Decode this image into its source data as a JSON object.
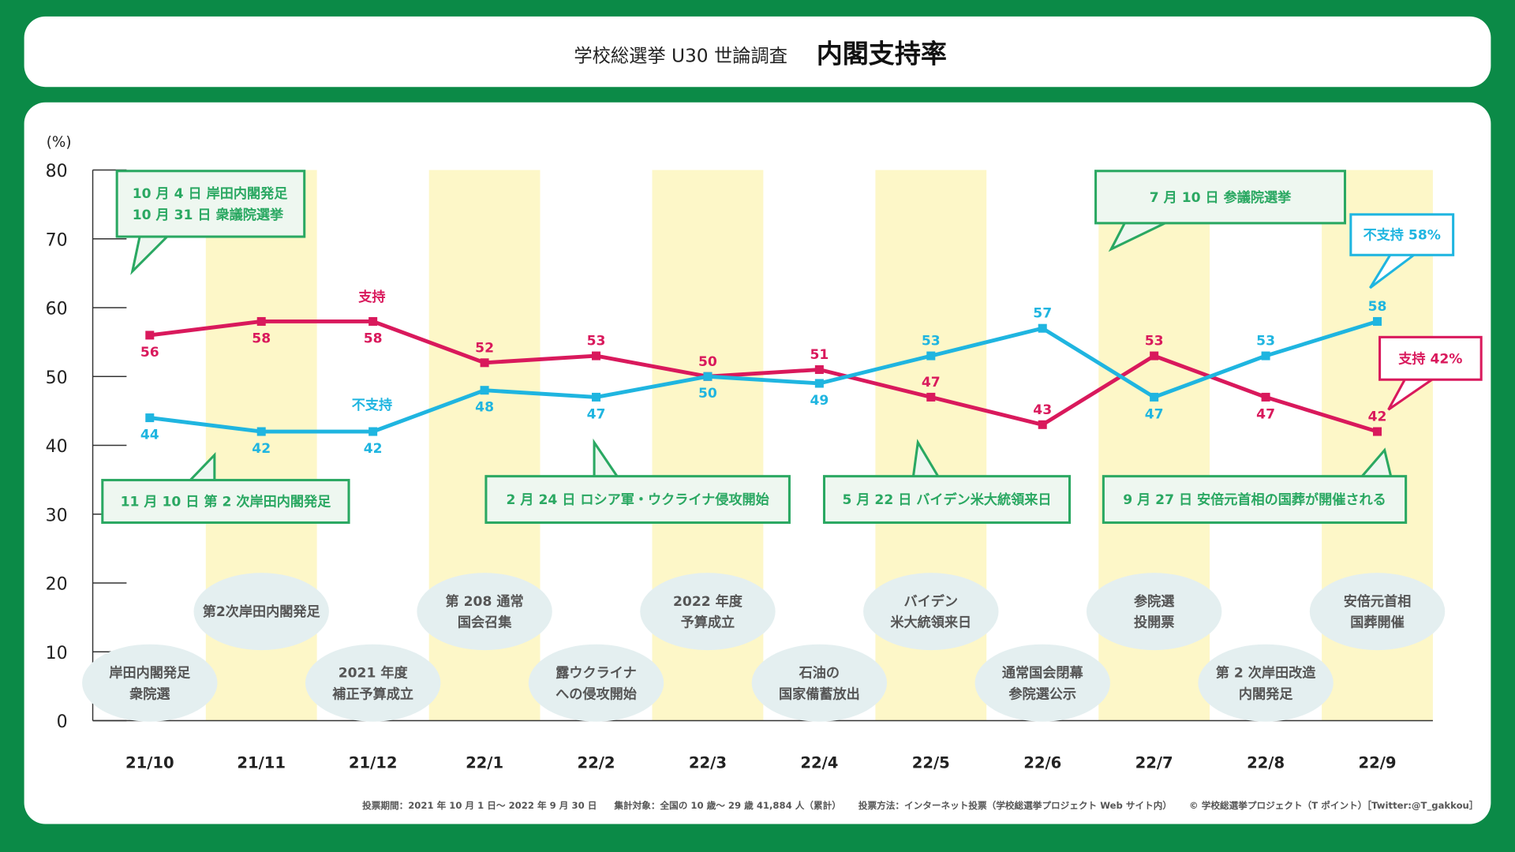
{
  "header": {
    "subtitle": "学校総選挙 U30 世論調査",
    "title": "内閣支持率"
  },
  "colors": {
    "background": "#0b8a47",
    "support": "#d9195c",
    "nonsupport": "#1fb5e0",
    "callout": "#2aa862",
    "band": "#fdf7c8",
    "bubble": "#e4eff0"
  },
  "chart_data": {
    "type": "line",
    "ylabel": "(%)",
    "ylim": [
      0,
      80
    ],
    "yticks": [
      "0",
      "10",
      "20",
      "30",
      "40",
      "50",
      "60",
      "70",
      "80"
    ],
    "categories": [
      "21/10",
      "21/11",
      "21/12",
      "22/1",
      "22/2",
      "22/3",
      "22/4",
      "22/5",
      "22/6",
      "22/7",
      "22/8",
      "22/9"
    ],
    "series": [
      {
        "name": "支持",
        "values": [
          56,
          58,
          58,
          52,
          53,
          50,
          51,
          47,
          43,
          53,
          47,
          42
        ]
      },
      {
        "name": "不支持",
        "values": [
          44,
          42,
          42,
          48,
          47,
          50,
          49,
          53,
          57,
          47,
          53,
          58
        ]
      }
    ],
    "end_labels": {
      "nonsupport": "不支持 58%",
      "support": "支持 42%"
    },
    "callouts": [
      {
        "lines": [
          "10 月  4 日  岸田内閣発足",
          "10 月 31 日  衆議院選挙"
        ]
      },
      {
        "lines": [
          "7 月 10 日  参議院選挙"
        ]
      },
      {
        "lines": [
          "11 月 10 日  第 2 次岸田内閣発足"
        ]
      },
      {
        "lines": [
          "2 月 24 日  ロシア軍・ウクライナ侵攻開始"
        ]
      },
      {
        "lines": [
          "5 月 22 日  バイデン米大統領来日"
        ]
      },
      {
        "lines": [
          "9 月 27 日  安倍元首相の国葬が開催される"
        ]
      }
    ],
    "events": [
      {
        "month": "21/10",
        "lines": [
          "岸田内閣発足",
          "衆院選"
        ]
      },
      {
        "month": "21/11",
        "lines": [
          "第2次岸田内閣発足"
        ]
      },
      {
        "month": "21/12",
        "lines": [
          "2021 年度",
          "補正予算成立"
        ]
      },
      {
        "month": "22/1",
        "lines": [
          "第 208 通常",
          "国会召集"
        ]
      },
      {
        "month": "22/2",
        "lines": [
          "露ウクライナ",
          "への侵攻開始"
        ]
      },
      {
        "month": "22/3",
        "lines": [
          "2022 年度",
          "予算成立"
        ]
      },
      {
        "month": "22/4",
        "lines": [
          "石油の",
          "国家備蓄放出"
        ]
      },
      {
        "month": "22/5",
        "lines": [
          "バイデン",
          "米大統領来日"
        ]
      },
      {
        "month": "22/6",
        "lines": [
          "通常国会閉幕",
          "参院選公示"
        ]
      },
      {
        "month": "22/7",
        "lines": [
          "参院選",
          "投開票"
        ]
      },
      {
        "month": "22/8",
        "lines": [
          "第 2 次岸田改造",
          "内閣発足"
        ]
      },
      {
        "month": "22/9",
        "lines": [
          "安倍元首相",
          "国葬開催"
        ]
      }
    ]
  },
  "footer": {
    "period": "投票期間：2021 年 10 月 1 日～ 2022 年 9 月 30 日",
    "target": "集計対象：全国の 10 歳～ 29 歳 41,884 人（累計）",
    "method": "投票方法：インターネット投票（学校総選挙プロジェクト Web サイト内）",
    "copyright": "© 学校総選挙プロジェクト（T ポイント）［Twitter:@T_gakkou］"
  }
}
